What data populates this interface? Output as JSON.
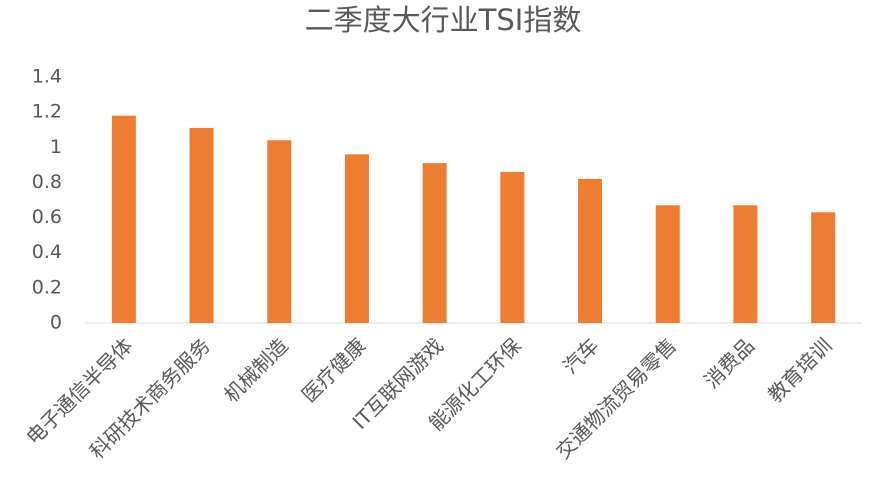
{
  "chart_data": {
    "type": "bar",
    "title": "二季度大行业TSI指数",
    "categories": [
      "电子通信半导体",
      "科研技术商务服务",
      "机械制造",
      "医疗健康",
      "IT互联网游戏",
      "能源化工环保",
      "汽车",
      "交通物流贸易零售",
      "消费品",
      "教育培训"
    ],
    "values": [
      1.18,
      1.11,
      1.04,
      0.96,
      0.91,
      0.86,
      0.82,
      0.67,
      0.67,
      0.63
    ],
    "color": "#ed7d31",
    "ylim": [
      0,
      1.4
    ],
    "yticks": [
      0,
      0.2,
      0.4,
      0.6,
      0.8,
      1,
      1.2,
      1.4
    ],
    "grid": false
  }
}
